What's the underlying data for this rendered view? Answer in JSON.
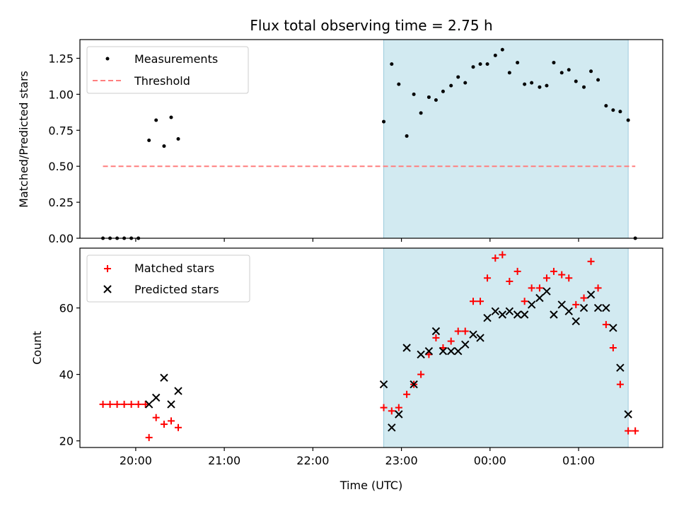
{
  "chart_data": {
    "title": "Flux total observing time = 2.75 h",
    "xlabel": "Time (UTC)",
    "x_ticks": [
      "20:00",
      "21:00",
      "22:00",
      "23:00",
      "00:00",
      "01:00"
    ],
    "x_tick_hours": [
      20,
      21,
      22,
      23,
      24,
      25
    ],
    "xlim": [
      19.37,
      25.95
    ],
    "shaded_region": {
      "x_start": 22.8,
      "x_end": 25.56,
      "color": "#add8e6"
    },
    "panels": [
      {
        "type": "scatter",
        "ylabel": "Matched/Predicted stars",
        "ylim": [
          0,
          1.38
        ],
        "y_ticks": [
          0.0,
          0.25,
          0.5,
          0.75,
          1.0,
          1.25
        ],
        "y_tick_labels": [
          "0.00",
          "0.25",
          "0.50",
          "0.75",
          "1.00",
          "1.25"
        ],
        "legend": {
          "placement": "upper-left",
          "entries": [
            "Measurements",
            "Threshold"
          ]
        },
        "series": [
          {
            "name": "Measurements",
            "kind": "dot",
            "color": "#000000",
            "points": [
              [
                19.63,
                0.0
              ],
              [
                19.71,
                0.0
              ],
              [
                19.79,
                0.0
              ],
              [
                19.87,
                0.0
              ],
              [
                19.95,
                0.0
              ],
              [
                20.03,
                0.0
              ],
              [
                20.15,
                0.68
              ],
              [
                20.23,
                0.82
              ],
              [
                20.32,
                0.64
              ],
              [
                20.4,
                0.84
              ],
              [
                20.48,
                0.69
              ],
              [
                22.8,
                0.81
              ],
              [
                22.89,
                1.21
              ],
              [
                22.97,
                1.07
              ],
              [
                23.06,
                0.71
              ],
              [
                23.14,
                1.0
              ],
              [
                23.22,
                0.87
              ],
              [
                23.31,
                0.98
              ],
              [
                23.39,
                0.96
              ],
              [
                23.47,
                1.02
              ],
              [
                23.56,
                1.06
              ],
              [
                23.64,
                1.12
              ],
              [
                23.72,
                1.08
              ],
              [
                23.81,
                1.19
              ],
              [
                23.89,
                1.21
              ],
              [
                23.97,
                1.21
              ],
              [
                24.06,
                1.27
              ],
              [
                24.14,
                1.31
              ],
              [
                24.22,
                1.15
              ],
              [
                24.31,
                1.22
              ],
              [
                24.39,
                1.07
              ],
              [
                24.47,
                1.08
              ],
              [
                24.56,
                1.05
              ],
              [
                24.64,
                1.06
              ],
              [
                24.72,
                1.22
              ],
              [
                24.81,
                1.15
              ],
              [
                24.89,
                1.17
              ],
              [
                24.97,
                1.09
              ],
              [
                25.06,
                1.05
              ],
              [
                25.14,
                1.16
              ],
              [
                25.22,
                1.1
              ],
              [
                25.31,
                0.92
              ],
              [
                25.39,
                0.89
              ],
              [
                25.47,
                0.88
              ],
              [
                25.56,
                0.82
              ],
              [
                25.64,
                0.0
              ]
            ]
          },
          {
            "name": "Threshold",
            "kind": "dashed-line",
            "color": "#ff7f7f",
            "points": [
              [
                19.63,
                0.5
              ],
              [
                25.64,
                0.5
              ]
            ]
          }
        ]
      },
      {
        "type": "scatter",
        "ylabel": "Count",
        "ylim": [
          18,
          78
        ],
        "y_ticks": [
          20,
          40,
          60
        ],
        "y_tick_labels": [
          "20",
          "40",
          "60"
        ],
        "legend": {
          "placement": "upper-left",
          "entries": [
            "Matched stars",
            "Predicted stars"
          ]
        },
        "series": [
          {
            "name": "Matched stars",
            "kind": "plus",
            "color": "#ff0000",
            "points": [
              [
                19.63,
                31
              ],
              [
                19.71,
                31
              ],
              [
                19.79,
                31
              ],
              [
                19.87,
                31
              ],
              [
                19.95,
                31
              ],
              [
                20.03,
                31
              ],
              [
                20.11,
                31
              ],
              [
                20.15,
                21
              ],
              [
                20.23,
                27
              ],
              [
                20.32,
                25
              ],
              [
                20.4,
                26
              ],
              [
                20.48,
                24
              ],
              [
                22.8,
                30
              ],
              [
                22.89,
                29
              ],
              [
                22.97,
                30
              ],
              [
                23.06,
                34
              ],
              [
                23.14,
                37
              ],
              [
                23.22,
                40
              ],
              [
                23.31,
                46
              ],
              [
                23.39,
                51
              ],
              [
                23.47,
                48
              ],
              [
                23.56,
                50
              ],
              [
                23.64,
                53
              ],
              [
                23.72,
                53
              ],
              [
                23.81,
                62
              ],
              [
                23.89,
                62
              ],
              [
                23.97,
                69
              ],
              [
                24.06,
                75
              ],
              [
                24.14,
                76
              ],
              [
                24.22,
                68
              ],
              [
                24.31,
                71
              ],
              [
                24.39,
                62
              ],
              [
                24.47,
                66
              ],
              [
                24.56,
                66
              ],
              [
                24.64,
                69
              ],
              [
                24.72,
                71
              ],
              [
                24.81,
                70
              ],
              [
                24.89,
                69
              ],
              [
                24.97,
                61
              ],
              [
                25.06,
                63
              ],
              [
                25.14,
                74
              ],
              [
                25.22,
                66
              ],
              [
                25.31,
                55
              ],
              [
                25.39,
                48
              ],
              [
                25.47,
                37
              ],
              [
                25.56,
                23
              ],
              [
                25.64,
                23
              ]
            ]
          },
          {
            "name": "Predicted stars",
            "kind": "x",
            "color": "#000000",
            "points": [
              [
                20.15,
                31
              ],
              [
                20.23,
                33
              ],
              [
                20.32,
                39
              ],
              [
                20.4,
                31
              ],
              [
                20.48,
                35
              ],
              [
                22.8,
                37
              ],
              [
                22.89,
                24
              ],
              [
                22.97,
                28
              ],
              [
                23.06,
                48
              ],
              [
                23.14,
                37
              ],
              [
                23.22,
                46
              ],
              [
                23.31,
                47
              ],
              [
                23.39,
                53
              ],
              [
                23.47,
                47
              ],
              [
                23.56,
                47
              ],
              [
                23.64,
                47
              ],
              [
                23.72,
                49
              ],
              [
                23.81,
                52
              ],
              [
                23.89,
                51
              ],
              [
                23.97,
                57
              ],
              [
                24.06,
                59
              ],
              [
                24.14,
                58
              ],
              [
                24.22,
                59
              ],
              [
                24.31,
                58
              ],
              [
                24.39,
                58
              ],
              [
                24.47,
                61
              ],
              [
                24.56,
                63
              ],
              [
                24.64,
                65
              ],
              [
                24.72,
                58
              ],
              [
                24.81,
                61
              ],
              [
                24.89,
                59
              ],
              [
                24.97,
                56
              ],
              [
                25.06,
                60
              ],
              [
                25.14,
                64
              ],
              [
                25.22,
                60
              ],
              [
                25.31,
                60
              ],
              [
                25.39,
                54
              ],
              [
                25.47,
                42
              ],
              [
                25.56,
                28
              ]
            ]
          }
        ]
      }
    ]
  }
}
